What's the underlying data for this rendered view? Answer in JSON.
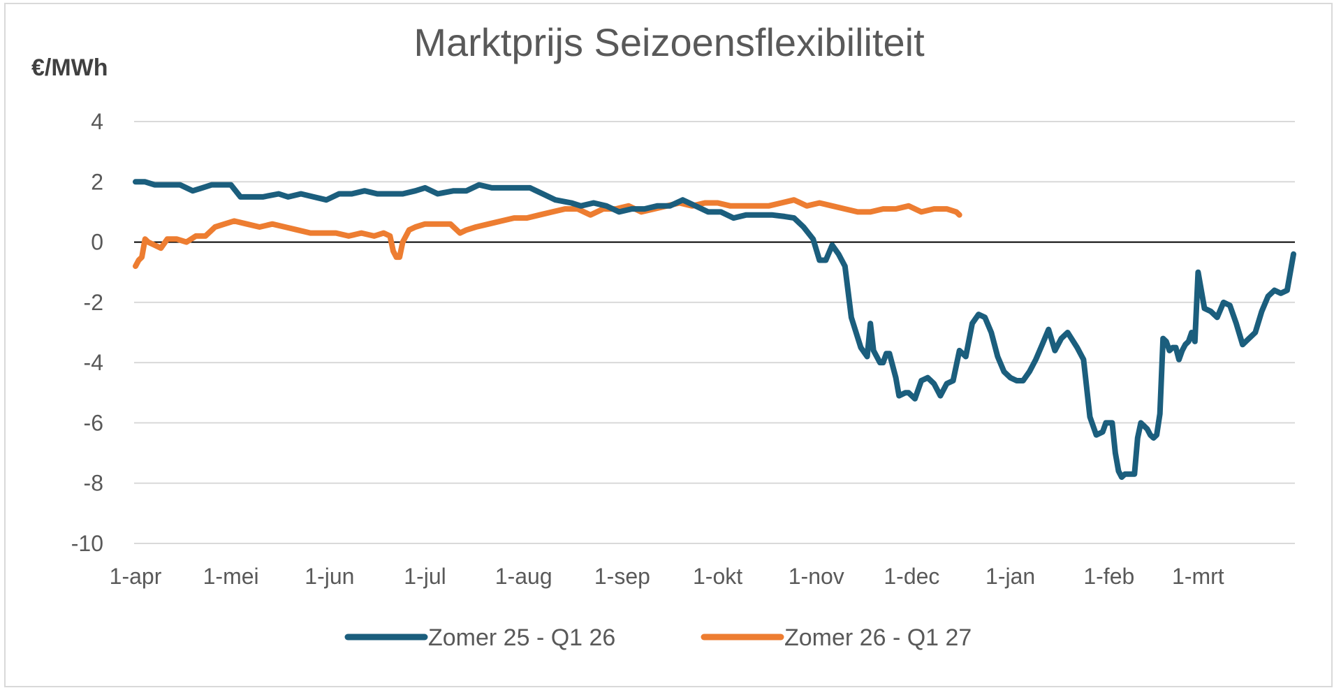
{
  "chart_data": {
    "type": "line",
    "title": "Marktprijs Seizoensflexibiliteit",
    "ylabel": "€/MWh",
    "xlabel": "",
    "ylim": [
      -10,
      4
    ],
    "y_ticks": [
      "4",
      "2",
      "0",
      "-2",
      "-4",
      "-6",
      "-8",
      "-10"
    ],
    "y_tick_values": [
      4,
      2,
      0,
      -2,
      -4,
      -6,
      -8,
      -10
    ],
    "x_tick_labels": [
      "1-apr",
      "1-mei",
      "1-jun",
      "1-jul",
      "1-aug",
      "1-sep",
      "1-okt",
      "1-nov",
      "1-dec",
      "1-jan",
      "1-feb",
      "1-mrt"
    ],
    "x_tick_days": [
      0,
      30,
      61,
      91,
      122,
      153,
      183,
      214,
      244,
      275,
      306,
      334
    ],
    "x_range_days": [
      0,
      364
    ],
    "grid": true,
    "legend_position": "bottom",
    "series": [
      {
        "name": "Zomer 25 - Q1 26",
        "color": "#1B5E7D",
        "x": [
          0,
          3,
          6,
          10,
          14,
          18,
          21,
          24,
          27,
          30,
          33,
          36,
          40,
          45,
          48,
          52,
          56,
          60,
          64,
          68,
          72,
          76,
          80,
          84,
          88,
          91,
          95,
          100,
          104,
          108,
          112,
          116,
          120,
          124,
          128,
          132,
          137,
          140,
          144,
          148,
          152,
          156,
          160,
          164,
          168,
          172,
          176,
          180,
          184,
          188,
          192,
          196,
          200,
          204,
          207,
          210,
          213,
          215,
          217,
          219,
          221,
          222,
          223,
          225,
          228,
          230,
          231,
          232,
          234,
          235,
          236,
          237,
          239,
          240,
          242,
          243,
          245,
          247,
          249,
          251,
          253,
          255,
          257,
          259,
          261,
          263,
          265,
          267,
          269,
          271,
          273,
          275,
          277,
          279,
          281,
          283,
          285,
          287,
          289,
          291,
          293,
          296,
          298,
          300,
          302,
          304,
          305,
          306,
          307,
          308,
          309,
          310,
          311,
          312,
          313,
          314,
          315,
          316,
          317,
          318,
          319,
          320,
          321,
          322,
          323,
          324,
          325,
          326,
          327,
          328,
          329,
          330,
          331,
          332,
          333,
          334,
          336,
          338,
          340,
          342,
          344,
          346,
          348,
          350,
          352,
          354,
          356,
          358,
          360,
          362,
          364
        ],
        "values": [
          2.0,
          2.0,
          1.9,
          1.9,
          1.9,
          1.7,
          1.8,
          1.9,
          1.9,
          1.9,
          1.5,
          1.5,
          1.5,
          1.6,
          1.5,
          1.6,
          1.5,
          1.4,
          1.6,
          1.6,
          1.7,
          1.6,
          1.6,
          1.6,
          1.7,
          1.8,
          1.6,
          1.7,
          1.7,
          1.9,
          1.8,
          1.8,
          1.8,
          1.8,
          1.6,
          1.4,
          1.3,
          1.2,
          1.3,
          1.2,
          1.0,
          1.1,
          1.1,
          1.2,
          1.2,
          1.4,
          1.2,
          1.0,
          1.0,
          0.8,
          0.9,
          0.9,
          0.9,
          0.85,
          0.8,
          0.5,
          0.1,
          -0.6,
          -0.6,
          -0.1,
          -0.4,
          -0.6,
          -0.8,
          -2.5,
          -3.5,
          -3.8,
          -2.7,
          -3.6,
          -4.0,
          -4.0,
          -3.7,
          -3.7,
          -4.5,
          -5.1,
          -5.0,
          -5.0,
          -5.2,
          -4.6,
          -4.5,
          -4.7,
          -5.1,
          -4.7,
          -4.6,
          -3.6,
          -3.8,
          -2.7,
          -2.4,
          -2.5,
          -3.0,
          -3.8,
          -4.3,
          -4.5,
          -4.6,
          -4.6,
          -4.3,
          -3.9,
          -3.4,
          -2.9,
          -3.6,
          -3.2,
          -3.0,
          -3.5,
          -3.9,
          -5.8,
          -6.4,
          -6.3,
          -6.0,
          -6.0,
          -6.0,
          -7.0,
          -7.6,
          -7.8,
          -7.7,
          -7.7,
          -7.7,
          -7.7,
          -6.5,
          -6.0,
          -6.1,
          -6.2,
          -6.4,
          -6.5,
          -6.4,
          -5.7,
          -3.2,
          -3.3,
          -3.6,
          -3.5,
          -3.5,
          -3.9,
          -3.6,
          -3.4,
          -3.3,
          -3.0,
          -3.3,
          -1.0,
          -2.2,
          -2.3,
          -2.5,
          -2.0,
          -2.1,
          -2.7,
          -3.4,
          -3.2,
          -3.0,
          -2.3,
          -1.8,
          -1.6,
          -1.7,
          -1.6,
          -0.4
        ]
      },
      {
        "name": "Zomer 26 - Q1 27",
        "color": "#ED7D31",
        "x": [
          0,
          1,
          2,
          3,
          4,
          6,
          8,
          10,
          13,
          16,
          19,
          22,
          25,
          28,
          31,
          35,
          39,
          43,
          47,
          51,
          55,
          59,
          63,
          67,
          71,
          75,
          78,
          80,
          81,
          82,
          83,
          84,
          86,
          88,
          91,
          95,
          99,
          102,
          104,
          107,
          111,
          115,
          119,
          123,
          127,
          131,
          135,
          139,
          143,
          147,
          151,
          155,
          159,
          163,
          167,
          171,
          175,
          179,
          183,
          187,
          191,
          195,
          199,
          203,
          207,
          211,
          215,
          219,
          223,
          227,
          231,
          235,
          239,
          243,
          247,
          251,
          255,
          258,
          259
        ],
        "values": [
          -0.8,
          -0.6,
          -0.5,
          0.1,
          0.0,
          -0.1,
          -0.2,
          0.1,
          0.1,
          0.0,
          0.2,
          0.2,
          0.5,
          0.6,
          0.7,
          0.6,
          0.5,
          0.6,
          0.5,
          0.4,
          0.3,
          0.3,
          0.3,
          0.2,
          0.3,
          0.2,
          0.3,
          0.2,
          -0.3,
          -0.5,
          -0.5,
          0.0,
          0.4,
          0.5,
          0.6,
          0.6,
          0.6,
          0.3,
          0.4,
          0.5,
          0.6,
          0.7,
          0.8,
          0.8,
          0.9,
          1.0,
          1.1,
          1.1,
          0.9,
          1.1,
          1.1,
          1.2,
          1.0,
          1.1,
          1.2,
          1.3,
          1.2,
          1.3,
          1.3,
          1.2,
          1.2,
          1.2,
          1.2,
          1.3,
          1.4,
          1.2,
          1.3,
          1.2,
          1.1,
          1.0,
          1.0,
          1.1,
          1.1,
          1.2,
          1.0,
          1.1,
          1.1,
          1.0,
          0.9
        ]
      }
    ]
  }
}
